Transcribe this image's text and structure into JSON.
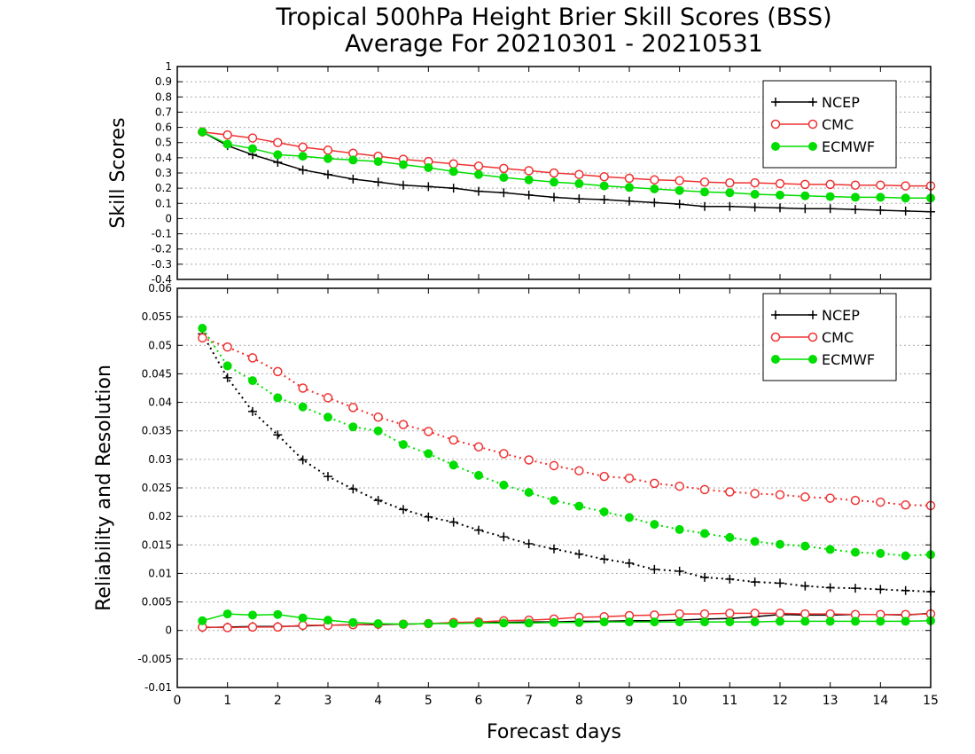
{
  "chart_data": [
    {
      "type": "line",
      "title": "Tropical 500hPa Height Brier Skill Scores (BSS)",
      "subtitle": "Average For 20210301 - 20210531",
      "xlabel": "Forecast days",
      "ylabel": "Skill Scores",
      "xlim": [
        0,
        15
      ],
      "ylim": [
        -0.4,
        1
      ],
      "yticks": [
        "1",
        "0.9",
        "0.8",
        "0.7",
        "0.6",
        "0.5",
        "0.4",
        "0.3",
        "0.2",
        "0.1",
        "0",
        "-0.1",
        "-0.2",
        "-0.3",
        "-0.4"
      ],
      "xticks": [
        "0",
        "1",
        "2",
        "3",
        "4",
        "5",
        "6",
        "7",
        "8",
        "9",
        "10",
        "11",
        "12",
        "13",
        "14",
        "15"
      ],
      "grid": true,
      "legend_position": "top-right",
      "x": [
        0.5,
        1,
        1.5,
        2,
        2.5,
        3,
        3.5,
        4,
        4.5,
        5,
        5.5,
        6,
        6.5,
        7,
        7.5,
        8,
        8.5,
        9,
        9.5,
        10,
        10.5,
        11,
        11.5,
        12,
        12.5,
        13,
        13.5,
        14,
        14.5,
        15
      ],
      "series": [
        {
          "name": "NCEP",
          "color": "#000000",
          "marker": "plus",
          "line": "solid",
          "values": [
            0.57,
            0.48,
            0.42,
            0.37,
            0.32,
            0.29,
            0.26,
            0.24,
            0.22,
            0.21,
            0.2,
            0.18,
            0.17,
            0.155,
            0.14,
            0.13,
            0.125,
            0.115,
            0.105,
            0.095,
            0.08,
            0.08,
            0.075,
            0.07,
            0.065,
            0.065,
            0.06,
            0.055,
            0.05,
            0.045
          ]
        },
        {
          "name": "CMC",
          "color": "#ee3333",
          "marker": "open-circle",
          "line": "solid",
          "values": [
            0.57,
            0.55,
            0.53,
            0.5,
            0.47,
            0.45,
            0.43,
            0.41,
            0.39,
            0.375,
            0.36,
            0.345,
            0.33,
            0.315,
            0.3,
            0.29,
            0.275,
            0.265,
            0.255,
            0.25,
            0.24,
            0.235,
            0.235,
            0.23,
            0.225,
            0.225,
            0.22,
            0.22,
            0.215,
            0.215
          ]
        },
        {
          "name": "ECMWF",
          "color": "#00dd00",
          "marker": "filled-circle",
          "line": "solid",
          "values": [
            0.57,
            0.49,
            0.46,
            0.42,
            0.41,
            0.395,
            0.385,
            0.375,
            0.355,
            0.335,
            0.31,
            0.29,
            0.27,
            0.255,
            0.24,
            0.23,
            0.215,
            0.205,
            0.195,
            0.185,
            0.175,
            0.17,
            0.16,
            0.155,
            0.15,
            0.145,
            0.14,
            0.14,
            0.135,
            0.135
          ]
        }
      ]
    },
    {
      "type": "line",
      "xlabel": "Forecast days",
      "ylabel": "Reliability and Resolution",
      "xlim": [
        0,
        15
      ],
      "ylim": [
        -0.01,
        0.06
      ],
      "yticks": [
        "0.06",
        "0.055",
        "0.05",
        "0.045",
        "0.04",
        "0.035",
        "0.03",
        "0.025",
        "0.02",
        "0.015",
        "0.01",
        "0.005",
        "0",
        "-0.005",
        "-0.01"
      ],
      "xticks": [
        "0",
        "1",
        "2",
        "3",
        "4",
        "5",
        "6",
        "7",
        "8",
        "9",
        "10",
        "11",
        "12",
        "13",
        "14",
        "15"
      ],
      "grid": true,
      "legend_position": "top-right",
      "x": [
        0.5,
        1,
        1.5,
        2,
        2.5,
        3,
        3.5,
        4,
        4.5,
        5,
        5.5,
        6,
        6.5,
        7,
        7.5,
        8,
        8.5,
        9,
        9.5,
        10,
        10.5,
        11,
        11.5,
        12,
        12.5,
        13,
        13.5,
        14,
        14.5,
        15
      ],
      "series": [
        {
          "name": "NCEP",
          "color": "#000000",
          "marker": "plus",
          "line": "dotted",
          "values": [
            0.052,
            0.0443,
            0.0384,
            0.0343,
            0.0299,
            0.027,
            0.0248,
            0.0228,
            0.0212,
            0.0199,
            0.019,
            0.0176,
            0.0164,
            0.0152,
            0.0143,
            0.0134,
            0.0125,
            0.0118,
            0.0107,
            0.0104,
            0.0093,
            0.009,
            0.0085,
            0.0083,
            0.0078,
            0.0075,
            0.0074,
            0.0072,
            0.007,
            0.0068
          ]
        },
        {
          "name": "CMC",
          "color": "#ee3333",
          "marker": "open-circle",
          "line": "dotted",
          "values": [
            0.0513,
            0.0497,
            0.0478,
            0.0454,
            0.0425,
            0.0408,
            0.0391,
            0.0374,
            0.0361,
            0.0349,
            0.0334,
            0.0322,
            0.031,
            0.0299,
            0.0289,
            0.028,
            0.027,
            0.0267,
            0.0258,
            0.0253,
            0.0247,
            0.0243,
            0.024,
            0.0238,
            0.0234,
            0.0232,
            0.0228,
            0.0225,
            0.022,
            0.0219
          ]
        },
        {
          "name": "ECMWF",
          "color": "#00dd00",
          "marker": "filled-circle",
          "line": "dotted",
          "values": [
            0.053,
            0.0464,
            0.0438,
            0.0408,
            0.0392,
            0.0374,
            0.0357,
            0.035,
            0.0326,
            0.031,
            0.029,
            0.0272,
            0.0255,
            0.0242,
            0.0228,
            0.0218,
            0.0208,
            0.0198,
            0.0186,
            0.0177,
            0.017,
            0.0163,
            0.0156,
            0.0151,
            0.0148,
            0.0142,
            0.0137,
            0.0135,
            0.0131,
            0.0133
          ]
        },
        {
          "name": "",
          "color": "#000000",
          "marker": "plus",
          "line": "solid",
          "values": [
            0.0005,
            0.0006,
            0.0007,
            0.0007,
            0.0008,
            0.0009,
            0.001,
            0.001,
            0.0011,
            0.0012,
            0.0013,
            0.0014,
            0.0014,
            0.0015,
            0.0015,
            0.0016,
            0.0016,
            0.0017,
            0.0017,
            0.0018,
            0.002,
            0.0021,
            0.0024,
            0.0028,
            0.0027,
            0.0027,
            0.0028,
            0.0028,
            0.0027,
            0.003
          ]
        },
        {
          "name": "",
          "color": "#ee3333",
          "marker": "open-circle",
          "line": "solid",
          "values": [
            0.0006,
            0.0005,
            0.0006,
            0.0006,
            0.0009,
            0.0009,
            0.001,
            0.0011,
            0.0011,
            0.0012,
            0.0014,
            0.0015,
            0.0017,
            0.0018,
            0.002,
            0.0023,
            0.0024,
            0.0026,
            0.0027,
            0.0029,
            0.0029,
            0.003,
            0.003,
            0.003,
            0.0029,
            0.0029,
            0.0028,
            0.0028,
            0.0028,
            0.0029
          ]
        },
        {
          "name": "",
          "color": "#00dd00",
          "marker": "filled-circle",
          "line": "solid",
          "values": [
            0.0017,
            0.0029,
            0.0027,
            0.0028,
            0.0022,
            0.0018,
            0.0014,
            0.0012,
            0.0011,
            0.0012,
            0.0012,
            0.0013,
            0.0013,
            0.0013,
            0.0014,
            0.0014,
            0.0015,
            0.0015,
            0.0015,
            0.0015,
            0.0015,
            0.0015,
            0.0015,
            0.0016,
            0.0016,
            0.0016,
            0.0016,
            0.0016,
            0.0016,
            0.0017
          ]
        }
      ]
    }
  ]
}
